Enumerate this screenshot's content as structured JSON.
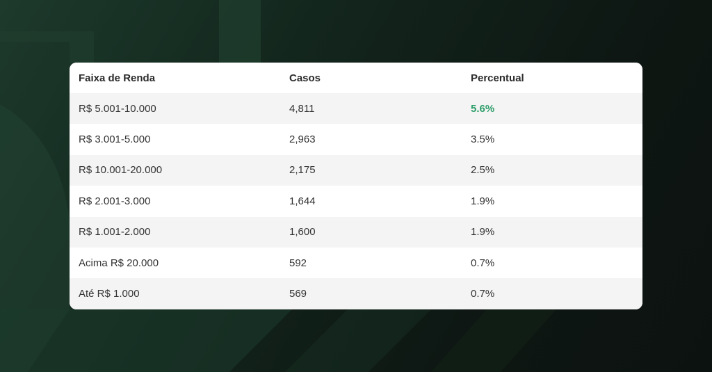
{
  "chart_data": {
    "type": "table",
    "columns": [
      "Faixa de Renda",
      "Casos",
      "Percentual"
    ],
    "rows": [
      {
        "faixa": "R$ 5.001-10.000",
        "casos": "4,811",
        "percentual": "5.6%",
        "highlight": true
      },
      {
        "faixa": "R$ 3.001-5.000",
        "casos": "2,963",
        "percentual": "3.5%",
        "highlight": false
      },
      {
        "faixa": "R$ 10.001-20.000",
        "casos": "2,175",
        "percentual": "2.5%",
        "highlight": false
      },
      {
        "faixa": "R$ 2.001-3.000",
        "casos": "1,644",
        "percentual": "1.9%",
        "highlight": false
      },
      {
        "faixa": "R$ 1.001-2.000",
        "casos": "1,600",
        "percentual": "1.9%",
        "highlight": false
      },
      {
        "faixa": "Acima R$ 20.000",
        "casos": "592",
        "percentual": "0.7%",
        "highlight": false
      },
      {
        "faixa": "Até R$ 1.000",
        "casos": "569",
        "percentual": "0.7%",
        "highlight": false
      }
    ]
  },
  "colors": {
    "highlight": "#2e9e6a",
    "background_dark": "#0e1713",
    "background_green": "#1d3a2c"
  }
}
